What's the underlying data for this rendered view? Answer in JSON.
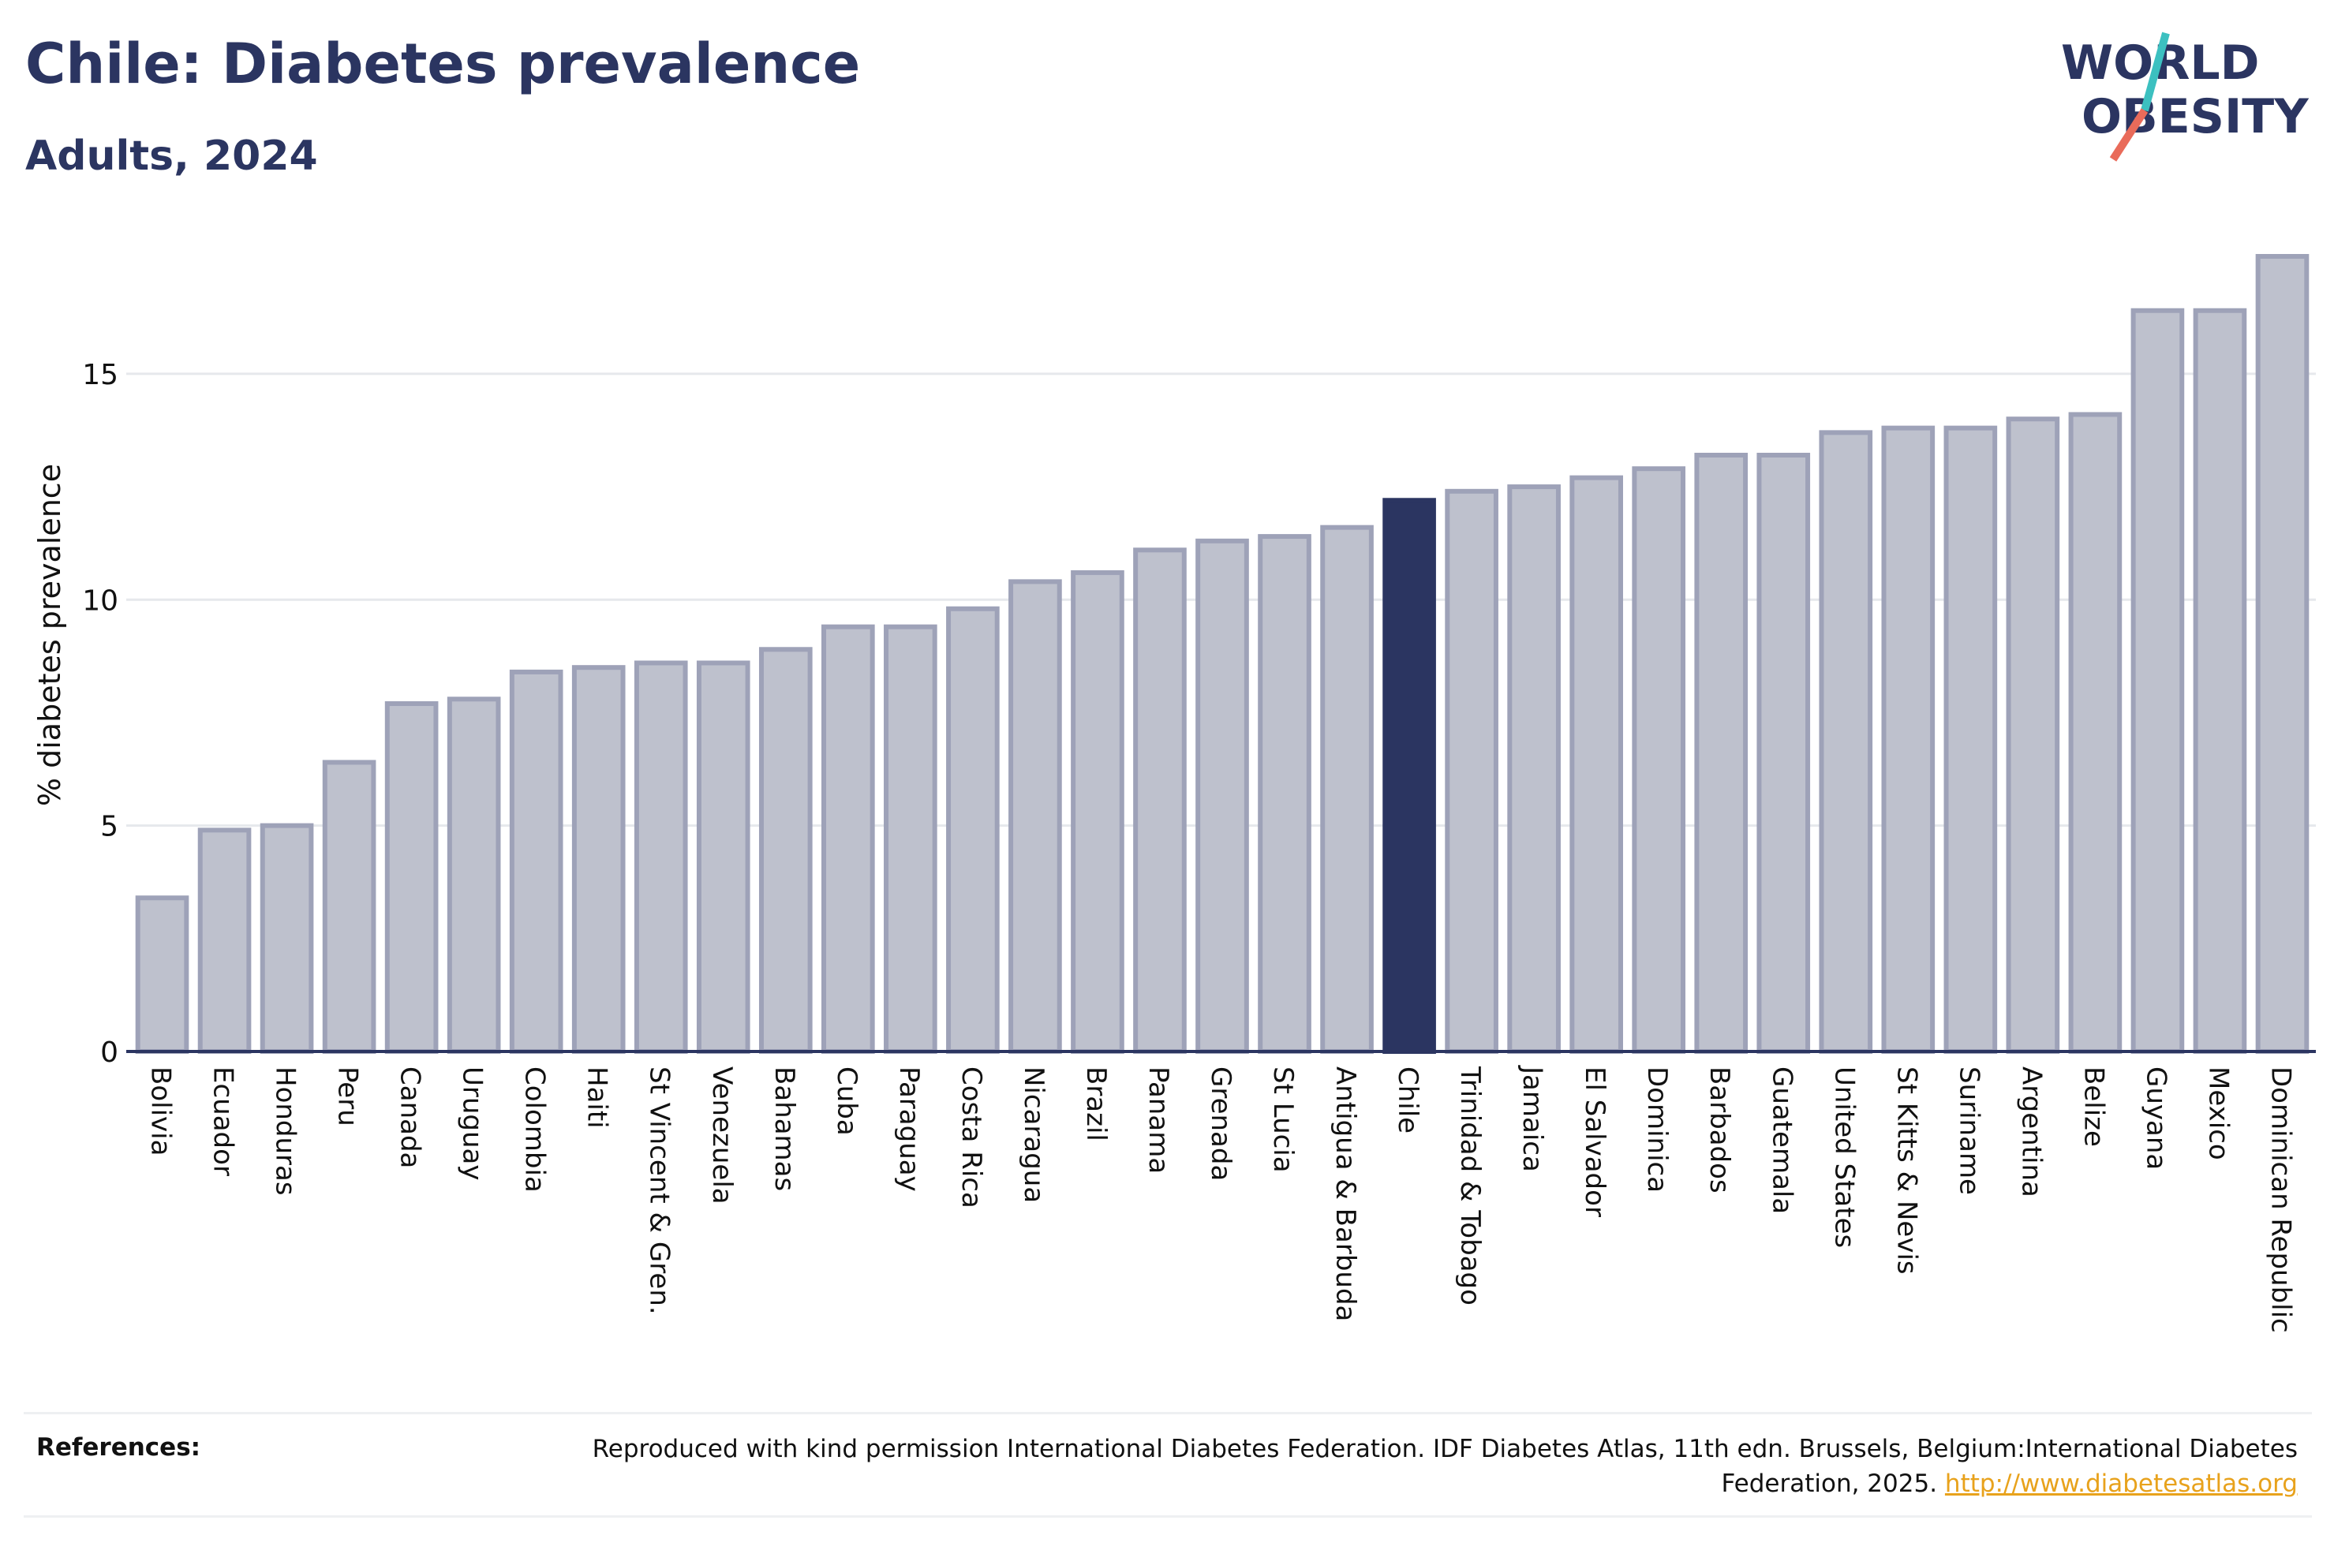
{
  "header": {
    "title": "Chile: Diabetes prevalence",
    "subtitle": "Adults, 2024"
  },
  "logo": {
    "line1": "WORLD",
    "line2": "OBESITY"
  },
  "chart_data": {
    "type": "bar",
    "ylabel": "% diabetes prevalence",
    "xlabel": "",
    "ylim": [
      0,
      17.6
    ],
    "yticks": [
      0,
      5,
      10,
      15
    ],
    "highlight": "Chile",
    "colors": {
      "bar": "#bec1cd",
      "bar_edge": "#9ea2b8",
      "highlight": "#2b3561",
      "grid": "#e6e8ec",
      "axis": "#2b3561"
    },
    "grid": true,
    "categories": [
      "Bolivia",
      "Ecuador",
      "Honduras",
      "Peru",
      "Canada",
      "Uruguay",
      "Colombia",
      "Haiti",
      "St Vincent & Gren.",
      "Venezuela",
      "Bahamas",
      "Cuba",
      "Paraguay",
      "Costa Rica",
      "Nicaragua",
      "Brazil",
      "Panama",
      "Grenada",
      "St Lucia",
      "Antigua & Barbuda",
      "Chile",
      "Trinidad & Tobago",
      "Jamaica",
      "El Salvador",
      "Dominica",
      "Barbados",
      "Guatemala",
      "United States",
      "St Kitts & Nevis",
      "Suriname",
      "Argentina",
      "Belize",
      "Guyana",
      "Mexico",
      "Dominican Republic"
    ],
    "values": [
      3.4,
      4.9,
      5.0,
      6.4,
      7.7,
      7.8,
      8.4,
      8.5,
      8.6,
      8.6,
      8.9,
      9.4,
      9.4,
      9.8,
      10.4,
      10.6,
      11.1,
      11.3,
      11.4,
      11.6,
      12.2,
      12.4,
      12.5,
      12.7,
      12.9,
      13.2,
      13.2,
      13.7,
      13.8,
      13.8,
      14.0,
      14.1,
      16.4,
      16.4,
      17.6
    ]
  },
  "references": {
    "label": "References:",
    "text": "Reproduced with kind permission International Diabetes Federation. IDF Diabetes Atlas, 11th edn. Brussels, Belgium:International Diabetes Federation, 2025.",
    "link": "http://www.diabetesatlas.org"
  }
}
